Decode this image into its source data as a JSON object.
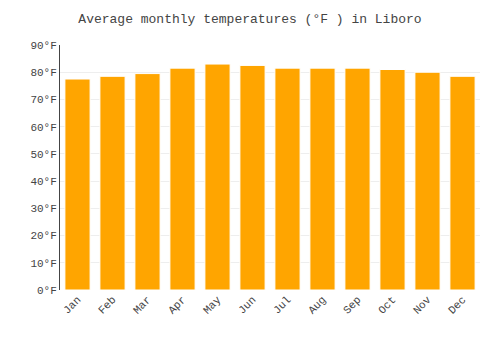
{
  "chart_data": {
    "type": "bar",
    "title": "Average monthly temperatures (°F ) in Liboro",
    "categories": [
      "Jan",
      "Feb",
      "Mar",
      "Apr",
      "May",
      "Jun",
      "Jul",
      "Aug",
      "Sep",
      "Oct",
      "Nov",
      "Dec"
    ],
    "values": [
      77.5,
      78.5,
      79.5,
      81.5,
      83.0,
      82.5,
      81.5,
      81.5,
      81.5,
      81.0,
      80.0,
      78.5
    ],
    "color": "#FFA500",
    "ylim": [
      0,
      90
    ],
    "yticks": [
      {
        "value": 0,
        "label": "0°F"
      },
      {
        "value": 10,
        "label": "10°F"
      },
      {
        "value": 20,
        "label": "20°F"
      },
      {
        "value": 30,
        "label": "30°F"
      },
      {
        "value": 40,
        "label": "40°F"
      },
      {
        "value": 50,
        "label": "50°F"
      },
      {
        "value": 60,
        "label": "60°F"
      },
      {
        "value": 70,
        "label": "70°F"
      },
      {
        "value": 80,
        "label": "80°F"
      },
      {
        "value": 90,
        "label": "90°F"
      }
    ],
    "grid": true
  }
}
